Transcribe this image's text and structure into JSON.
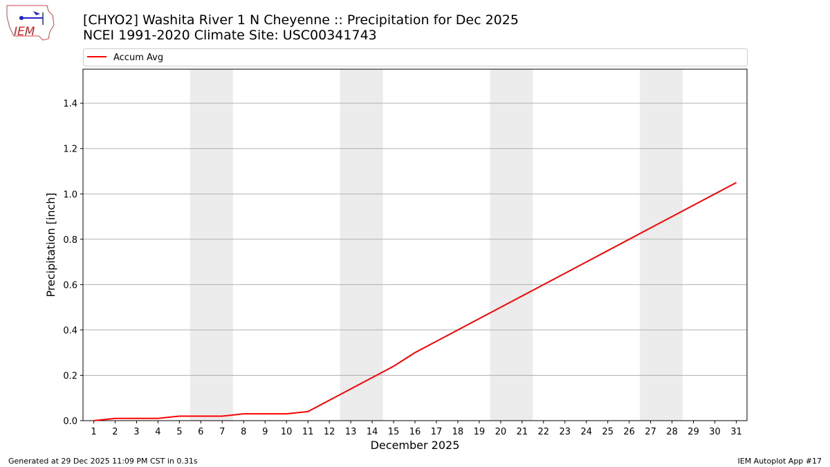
{
  "chart_data": {
    "type": "line",
    "title": "[CHYO2] Washita River 1 N Cheyenne :: Precipitation for Dec 2025",
    "subtitle": "NCEI 1991-2020 Climate Site: USC00341743",
    "x_label": "December 2025",
    "y_label": "Precipitation [inch]",
    "x": [
      1,
      2,
      3,
      4,
      5,
      6,
      7,
      8,
      9,
      10,
      11,
      12,
      13,
      14,
      15,
      16,
      17,
      18,
      19,
      20,
      21,
      22,
      23,
      24,
      25,
      26,
      27,
      28,
      29,
      30,
      31
    ],
    "series": [
      {
        "name": "Accum Avg",
        "color": "#ff0000",
        "values": [
          0,
          0.01,
          0.01,
          0.01,
          0.02,
          0.02,
          0.02,
          0.03,
          0.03,
          0.03,
          0.04,
          0.09,
          0.14,
          0.19,
          0.24,
          0.3,
          0.35,
          0.4,
          0.45,
          0.5,
          0.55,
          0.6,
          0.65,
          0.7,
          0.75,
          0.8,
          0.85,
          0.9,
          0.95,
          1.0,
          1.05
        ]
      }
    ],
    "shaded_x_ranges": [
      [
        5.5,
        7.5
      ],
      [
        12.5,
        14.5
      ],
      [
        19.5,
        21.5
      ],
      [
        26.5,
        28.5
      ]
    ],
    "shade_color": "#ececec",
    "xlim": [
      0.5,
      31.5
    ],
    "xticks": [
      1,
      2,
      3,
      4,
      5,
      6,
      7,
      8,
      9,
      10,
      11,
      12,
      13,
      14,
      15,
      16,
      17,
      18,
      19,
      20,
      21,
      22,
      23,
      24,
      25,
      26,
      27,
      28,
      29,
      30,
      31
    ],
    "ylim": [
      0,
      1.55
    ],
    "yticks": [
      {
        "value": 0,
        "label": "0.0"
      },
      0.2,
      0.4,
      0.6,
      0.8,
      {
        "value": 1,
        "label": "1.0"
      },
      1.2,
      1.4
    ],
    "grid": true,
    "legend": "top"
  },
  "logo": {
    "text": "IEM"
  },
  "footer": {
    "left": "Generated at 29 Dec 2025 11:09 PM CST in 0.31s",
    "right": "IEM Autoplot App #17"
  }
}
